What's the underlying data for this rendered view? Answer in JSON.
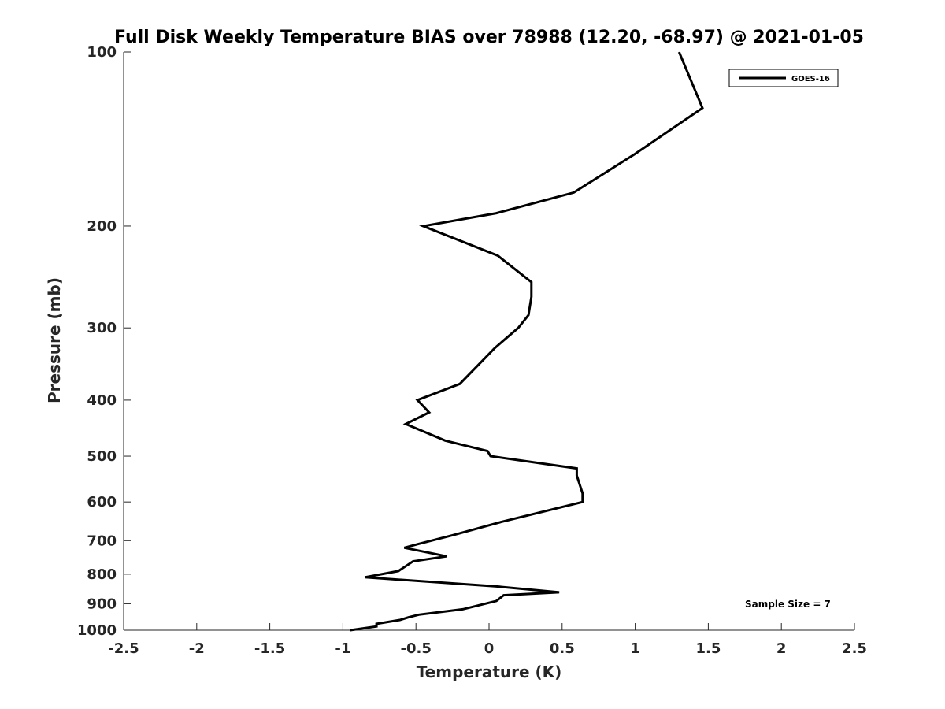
{
  "chart_data": {
    "type": "line",
    "title": "Full Disk Weekly Temperature BIAS over 78988 (12.20, -68.97) @ 2021-01-05",
    "xlabel": "Temperature (K)",
    "ylabel": "Pressure (mb)",
    "xlim": [
      -2.5,
      2.5
    ],
    "ylim": [
      100,
      1000
    ],
    "y_scale": "log",
    "y_reversed": true,
    "x_ticks": [
      -2.5,
      -2,
      -1.5,
      -1,
      -0.5,
      0,
      0.5,
      1,
      1.5,
      2,
      2.5
    ],
    "x_tick_labels": [
      "-2.5",
      "-2",
      "-1.5",
      "-1",
      "-0.5",
      "0",
      "0.5",
      "1",
      "1.5",
      "2",
      "2.5"
    ],
    "y_ticks": [
      100,
      200,
      300,
      400,
      500,
      600,
      700,
      800,
      900,
      1000
    ],
    "y_tick_labels": [
      "100",
      "200",
      "300",
      "400",
      "500",
      "600",
      "700",
      "800",
      "900",
      "1000"
    ],
    "legend": {
      "position": "top-right",
      "entries": [
        "GOES-16"
      ]
    },
    "annotation": "Sample Size = 7",
    "grid": false,
    "line_color": "#000000",
    "series": [
      {
        "name": "GOES-16",
        "temperature": [
          1.3,
          1.46,
          1.0,
          0.58,
          0.05,
          -0.45,
          0.06,
          0.29,
          0.29,
          0.27,
          0.2,
          0.04,
          -0.2,
          -0.49,
          -0.41,
          -0.57,
          -0.3,
          -0.01,
          0.01,
          0.6,
          0.6,
          0.64,
          0.64,
          0.08,
          -0.25,
          -0.49,
          -0.58,
          -0.29,
          -0.52,
          -0.62,
          -0.85,
          0.05,
          0.48,
          0.1,
          0.05,
          -0.18,
          -0.48,
          -0.55,
          -0.61,
          -0.77,
          -0.77,
          -0.95
        ],
        "pressure": [
          100,
          125,
          150,
          175,
          190,
          200,
          225,
          250,
          265,
          285,
          300,
          325,
          375,
          400,
          420,
          440,
          470,
          490,
          500,
          525,
          540,
          580,
          600,
          650,
          685,
          710,
          720,
          745,
          760,
          790,
          810,
          840,
          860,
          870,
          890,
          920,
          940,
          950,
          960,
          975,
          985,
          1000
        ]
      }
    ]
  }
}
